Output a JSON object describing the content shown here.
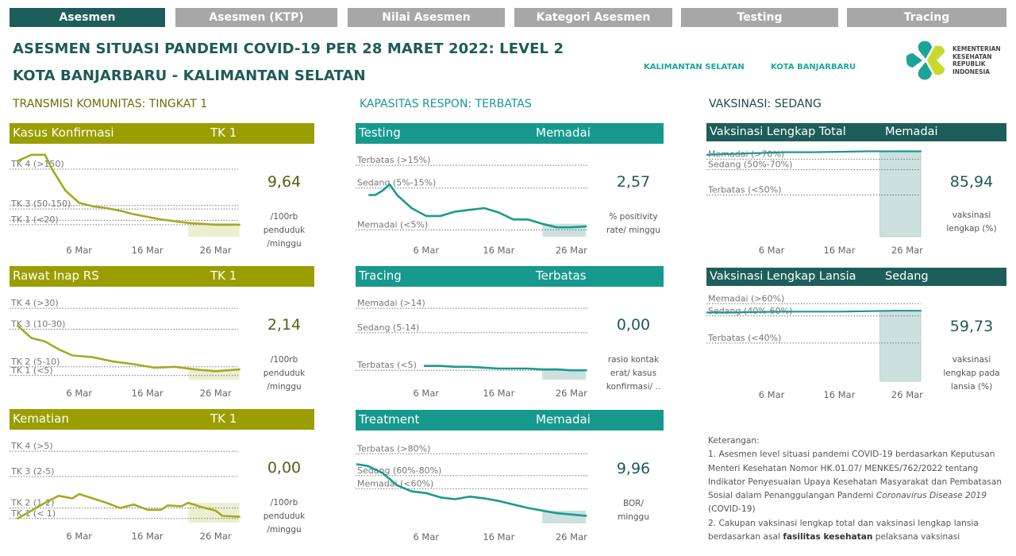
{
  "tabs": [
    {
      "label": "Asesmen",
      "active": true
    },
    {
      "label": "Asesmen (KTP)",
      "active": false
    },
    {
      "label": "Nilai Asesmen",
      "active": false
    },
    {
      "label": "Kategori Asesmen",
      "active": false
    },
    {
      "label": "Testing",
      "active": false
    },
    {
      "label": "Tracing",
      "active": false
    }
  ],
  "header": {
    "title_line1": "ASESMEN SITUASI PANDEMI COVID-19 PER 28 MARET 2022: LEVEL 2",
    "title_line2": "KOTA BANJARBARU - KALIMANTAN SELATAN",
    "link_province": "KALIMANTAN SELATAN",
    "link_city": "KOTA BANJARBARU",
    "logo_text": [
      "KEMENTERIAN",
      "KESEHATAN",
      "REPUBLIK",
      "INDONESIA"
    ]
  },
  "sections": {
    "transmisi": "TRANSMISI KOMUNITAS: TINGKAT 1",
    "kapasitas": "KAPASITAS RESPON: TERBATAS",
    "vaksinasi": "VAKSINASI: SEDANG"
  },
  "colors": {
    "olive": "#9a9e00",
    "olive_line": "#a5aa22",
    "teal": "#17998e",
    "teal_line": "#1b9a8f",
    "dark_teal": "#1d5e5a",
    "olive_text": "#5b5e12",
    "teal_text": "#1e5b57"
  },
  "x_ticks": [
    "6 Mar",
    "16 Mar",
    "26 Mar"
  ],
  "x_tick_days": [
    6,
    16,
    26
  ],
  "panels": [
    {
      "id": "kasus",
      "title": "Kasus Konfirmasi",
      "status": "TK  1",
      "value": "9,64",
      "unit": [
        "/100rb",
        "penduduk",
        "/minggu"
      ],
      "thresholds": [
        {
          "label": "TK 4 (>150)",
          "level": 74.5
        },
        {
          "label": "TK 3 (50-150)",
          "level": 29
        },
        {
          "label": "TK 1 (<20)",
          "level": 11
        }
      ],
      "extra_lines": [
        33,
        16
      ],
      "days": [
        -3,
        -1,
        1,
        2,
        4,
        6,
        8,
        10,
        12,
        14,
        16,
        18,
        20,
        22,
        24,
        26,
        29.5
      ],
      "series": [
        84,
        91,
        91,
        75,
        50,
        36,
        32,
        30,
        27,
        23,
        20,
        17,
        15,
        13,
        12,
        11,
        11
      ]
    },
    {
      "id": "rawat",
      "title": "Rawat Inap RS",
      "status": "TK  1",
      "value": "2,14",
      "unit": [
        "/100rb",
        "penduduk",
        "/minggu"
      ],
      "thresholds": [
        {
          "label": "TK 4 (>30)",
          "level": 79
        },
        {
          "label": "TK 3 (10-30)",
          "level": 55
        },
        {
          "label": "TK 2 (5-10)",
          "level": 12
        },
        {
          "label": "TK 1 (<5)",
          "level": 2
        }
      ],
      "extra_lines": [],
      "days": [
        -3,
        -1,
        1,
        3,
        5,
        8,
        11,
        14,
        17,
        20,
        23,
        26,
        29.5
      ],
      "series": [
        59,
        45,
        41,
        32,
        25,
        23,
        18,
        15,
        11,
        12,
        9,
        7,
        9
      ]
    },
    {
      "id": "kematian",
      "title": "Kematian",
      "status": "TK  1",
      "value": "0,00",
      "unit": [
        "/100rb",
        "penduduk",
        "/minggu"
      ],
      "thresholds": [
        {
          "label": "TK 4 (>5)",
          "level": 79
        },
        {
          "label": "TK 3 (2-5)",
          "level": 50
        },
        {
          "label": "TK 2 (1-2)",
          "level": 14
        },
        {
          "label": "TK 1 (< 1)",
          "level": 2
        }
      ],
      "extra_lines": [],
      "days": [
        -3,
        -1,
        1,
        3,
        5,
        6,
        8,
        10,
        12,
        14,
        16,
        18,
        19,
        21,
        22,
        24,
        26,
        27,
        29.5
      ],
      "series": [
        2,
        11,
        20,
        28,
        25,
        30,
        25,
        20,
        14,
        18,
        12,
        12,
        17,
        16,
        20,
        15,
        11,
        5,
        4
      ]
    },
    {
      "id": "testing",
      "title": "Testing",
      "status": "Memadai",
      "value": "2,57",
      "unit": [
        "% positivity",
        "rate/ minggu"
      ],
      "thresholds": [
        {
          "label": "Terbatas (>15%)",
          "level": 79
        },
        {
          "label": "Sedang (5%-15%)",
          "level": 53
        },
        {
          "label": "Memadai (<5%)",
          "level": 5
        }
      ],
      "extra_lines": [],
      "days": [
        -1.8,
        -1,
        0,
        1,
        2,
        4,
        6,
        8,
        10,
        12,
        14,
        16,
        18,
        20,
        22,
        24,
        26,
        28
      ],
      "series": [
        45,
        45,
        50,
        57,
        45,
        30,
        21,
        21,
        26,
        28,
        30,
        25,
        17,
        17,
        12,
        8,
        8,
        9
      ]
    },
    {
      "id": "tracing",
      "title": "Tracing",
      "status": "Terbatas",
      "value": "0,00",
      "unit": [
        "rasio kontak",
        "erat/ kasus",
        "konfirmasi/ .."
      ],
      "thresholds": [
        {
          "label": "Memadai (>14)",
          "level": 79
        },
        {
          "label": "Sedang (5-14)",
          "level": 51
        },
        {
          "label": "Terbatas (<5)",
          "level": 8
        }
      ],
      "extra_lines": [],
      "days": [
        5.8,
        8,
        10,
        12,
        14,
        16,
        18,
        20,
        22,
        24,
        26,
        28
      ],
      "series": [
        13,
        13,
        12,
        12,
        11,
        10,
        10,
        10,
        9,
        9,
        8,
        8
      ]
    },
    {
      "id": "treatment",
      "title": "Treatment",
      "status": "Memadai",
      "value": "9,96",
      "unit": [
        "BOR/",
        "minggu"
      ],
      "thresholds": [
        {
          "label": "Terbatas (>80%)",
          "level": 77
        },
        {
          "label": "Sedang (60%-80%)",
          "level": 52
        },
        {
          "label": "Memadai (<60%)",
          "level": 37
        }
      ],
      "extra_lines": [],
      "days": [
        -3.5,
        -2,
        0,
        2,
        4,
        6,
        8,
        10,
        12,
        14,
        16,
        18,
        20,
        22,
        24,
        28
      ],
      "series": [
        65,
        63,
        55,
        41,
        34,
        32,
        27,
        25,
        28,
        26,
        23,
        19,
        15,
        12,
        9,
        6
      ]
    },
    {
      "id": "vaks_total",
      "title": "Vaksinasi Lengkap Total",
      "status": "Memadai",
      "value": "85,94",
      "unit": [
        "vaksinasi",
        "lengkap (%)"
      ],
      "thresholds": [
        {
          "label": "Memadai (>70%)",
          "level": 86
        },
        {
          "label": "Sedang (50%-70%)",
          "level": 74
        },
        {
          "label": "Terbatas (<50%)",
          "level": 45
        }
      ],
      "extra_lines": [],
      "days": [
        -3.5,
        0,
        4,
        8,
        12,
        16,
        20,
        24,
        28
      ],
      "series": [
        91,
        92,
        93,
        94,
        94,
        94.5,
        95,
        95,
        95
      ]
    },
    {
      "id": "vaks_lansia",
      "title": "Vaksinasi Lengkap Lansia",
      "status": "Sedang",
      "value": "59,73",
      "unit": [
        "vaksinasi",
        "lengkap pada",
        "lansia (%)"
      ],
      "thresholds": [
        {
          "label": "Memadai (>60%)",
          "level": 86
        },
        {
          "label": "Sedang (40%-60%)",
          "level": 72
        },
        {
          "label": "Terbatas (<40%)",
          "level": 41
        }
      ],
      "extra_lines": [],
      "days": [
        -3.5,
        0,
        4,
        8,
        12,
        16,
        20,
        24,
        28
      ],
      "series": [
        76,
        76,
        76.5,
        77,
        77,
        77,
        77.5,
        78,
        78
      ]
    }
  ],
  "notes": {
    "heading": "Keterangan:",
    "item1_pre": "1. Asesmen level situasi pandemi COVID-19 berdasarkan Keputusan Menteri Kesehatan Nomor HK.01.07/ MENKES/762/2022 tentang Indikator Penyesuaian Upaya Kesehatan Masyarakat dan Pembatasan Sosial dalam Penanggulangan Pandemi ",
    "item1_italic": "Coronavirus Disease 2019",
    "item1_post": " (COVID-19)",
    "item2_pre": "2. Cakupan vaksinasi lengkap total dan vaksinasi lengkap lansia berdasarkan asal ",
    "item2_bold": "fasilitas kesehatan",
    "item2_post": " pelaksana vaksinasi"
  }
}
